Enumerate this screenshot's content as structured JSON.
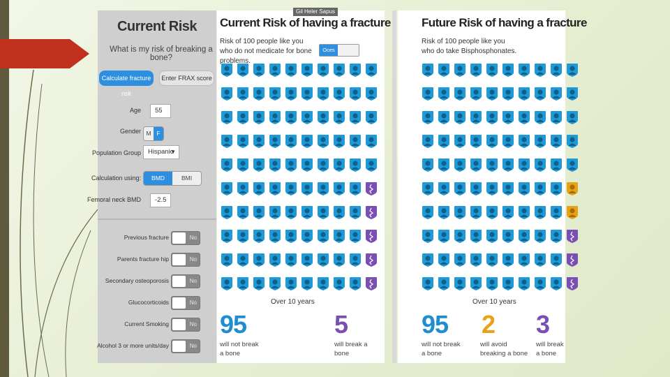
{
  "left_panel": {
    "title": "Current Risk",
    "subtitle": "What is my risk of breaking a bone?",
    "calc_button": "Calculate fracture risk",
    "frax_button": "Enter FRAX score",
    "age": {
      "label": "Age",
      "value": "55"
    },
    "gender": {
      "label": "Gender",
      "options": [
        "M",
        "F"
      ],
      "selected": "F"
    },
    "population": {
      "label": "Population Group",
      "value": "Hispanic"
    },
    "calc_using": {
      "label": "Calculation using:",
      "options": [
        "BMD",
        "BMI"
      ],
      "selected": "BMD"
    },
    "bmd": {
      "label": "Femoral neck BMD",
      "value": "-2.5"
    },
    "risk_factors": [
      {
        "label": "Previous fracture",
        "value": "No"
      },
      {
        "label": "Parents fracture hip",
        "value": "No"
      },
      {
        "label": "Secondary osteoporosis",
        "value": "No"
      },
      {
        "label": "Glucocorticoids",
        "value": "No"
      },
      {
        "label": "Current Smoking",
        "value": "No"
      },
      {
        "label": "Alcohol 3 or more units/day",
        "value": "No"
      }
    ]
  },
  "current_panel": {
    "tooltip": "Gil Heler Sapus",
    "title": "Current Risk of having a fracture",
    "description": "Risk of 100 people like you who do not medicate for bone problems.",
    "toggle_label": "Oces",
    "period": "Over 10 years",
    "icons": {
      "not_break": 95,
      "break": 5
    },
    "stat_not_break": {
      "number": "95",
      "caption": "will not break a bone"
    },
    "stat_break": {
      "number": "5",
      "caption": "will break a bone"
    }
  },
  "future_panel": {
    "title": "Future Risk of having a fracture",
    "description": "Risk of 100 people like you who do take Bisphosphonates.",
    "period": "Over 10 years",
    "icons": {
      "not_break": 95,
      "avoid": 2,
      "break": 3
    },
    "stat_not_break": {
      "number": "95",
      "caption": "will not break a bone"
    },
    "stat_avoid": {
      "number": "2",
      "caption": "will avoid breaking a bone"
    },
    "stat_break": {
      "number": "3",
      "caption": "will break a bone"
    }
  },
  "colors": {
    "blue": "#1f9ad6",
    "purple": "#7a4fb3",
    "orange": "#e8a21a",
    "stat_blue": "#1f8ed0"
  }
}
